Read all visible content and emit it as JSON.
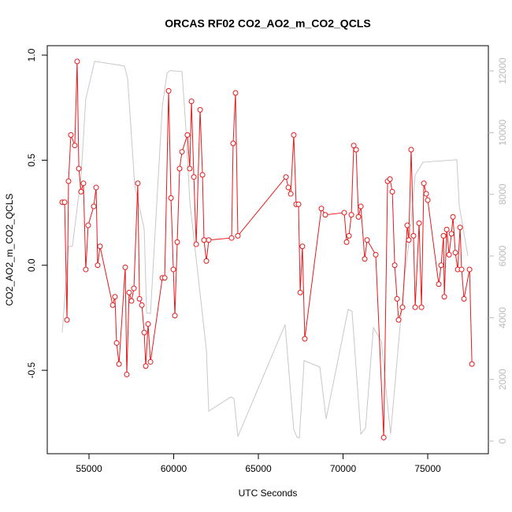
{
  "chart_data": {
    "type": "line",
    "title": "ORCAS RF02 CO2_AO2_m_CO2_QCLS",
    "xlabel": "UTC Seconds",
    "ylabel": "CO2_AO2_m_CO2_QCLS",
    "xlim": [
      52535,
      78580
    ],
    "ylim": [
      -0.897,
      1.045
    ],
    "y2lim": [
      -408,
      12817
    ],
    "xticks": [
      55000,
      60000,
      65000,
      70000,
      75000
    ],
    "yticks": [
      {
        "value": -0.5,
        "label": "-0.5"
      },
      {
        "value": 0,
        "label": "0.0"
      },
      {
        "value": 0.5,
        "label": "0.5"
      },
      {
        "value": 1,
        "label": "1.0"
      }
    ],
    "y2ticks": [
      0,
      2000,
      4000,
      6000,
      8000,
      10000,
      12000
    ],
    "series": [
      {
        "color": "#e41a1c",
        "markers": true,
        "x": [
          53419,
          53560,
          53700,
          53790,
          53930,
          54160,
          54300,
          54400,
          54530,
          54670,
          54810,
          54950,
          55280,
          55420,
          55510,
          55650,
          56400,
          56530,
          56630,
          56770,
          57140,
          57230,
          57370,
          57510,
          57650,
          57880,
          57980,
          58120,
          58260,
          58350,
          58490,
          58630,
          59330,
          59470,
          59700,
          59840,
          59980,
          60070,
          60210,
          60350,
          60490,
          60810,
          60950,
          61050,
          61190,
          61330,
          61560,
          61700,
          61790,
          61930,
          62070,
          63420,
          63510,
          63650,
          63790,
          66630,
          66770,
          66910,
          67090,
          67230,
          67370,
          67470,
          67600,
          67740,
          68720,
          68950,
          70070,
          70210,
          70350,
          70490,
          70630,
          70770,
          70910,
          71050,
          71280,
          71420,
          71930,
          72400,
          72630,
          72770,
          72910,
          73050,
          73190,
          73280,
          73510,
          73790,
          73880,
          74020,
          74160,
          74260,
          74490,
          74630,
          74770,
          74910,
          75000,
          75650,
          75790,
          75930,
          75980,
          76120,
          76260,
          76400,
          76490,
          76630,
          76770,
          76910,
          77000,
          77140,
          77470,
          77610
        ],
        "values": [
          0.3,
          0.3,
          -0.26,
          0.4,
          0.62,
          0.57,
          0.97,
          0.46,
          0.35,
          0.39,
          -0.02,
          0.19,
          0.28,
          0.37,
          0.0,
          0.09,
          -0.19,
          -0.15,
          -0.37,
          -0.47,
          -0.01,
          -0.52,
          -0.13,
          -0.17,
          -0.11,
          0.39,
          -0.16,
          -0.19,
          -0.32,
          -0.48,
          -0.28,
          -0.46,
          -0.06,
          -0.06,
          0.83,
          0.32,
          -0.02,
          -0.24,
          0.11,
          0.46,
          0.54,
          0.62,
          0.46,
          0.78,
          0.42,
          0.1,
          0.74,
          0.43,
          0.12,
          0.02,
          0.12,
          0.13,
          0.58,
          0.82,
          0.14,
          0.42,
          0.37,
          0.34,
          0.62,
          0.29,
          0.29,
          -0.13,
          0.09,
          -0.35,
          0.27,
          0.24,
          0.25,
          0.11,
          0.14,
          0.24,
          0.57,
          0.55,
          0.23,
          0.28,
          0.03,
          0.12,
          0.05,
          -0.82,
          0.4,
          0.41,
          0.35,
          0.0,
          -0.16,
          -0.26,
          -0.2,
          0.19,
          0.12,
          0.55,
          0.14,
          -0.2,
          0.2,
          -0.2,
          0.39,
          0.34,
          0.31,
          -0.09,
          0.0,
          0.14,
          -0.15,
          0.17,
          0.05,
          0.15,
          0.23,
          0.06,
          -0.02,
          0.18,
          -0.02,
          -0.16,
          -0.02,
          -0.47
        ]
      },
      {
        "color": "#c8c8c8",
        "axis": "y2",
        "markers": false,
        "x": [
          53420,
          53790,
          54020,
          54530,
          54810,
          55330,
          57090,
          57280,
          57700,
          58260,
          58400,
          58630,
          59330,
          59610,
          59790,
          60490,
          60720,
          60950,
          61930,
          62070,
          63370,
          63560,
          63790,
          66580,
          66910,
          67090,
          67280,
          67420,
          67700,
          68630,
          69000,
          70300,
          70530,
          71050,
          71330,
          71790,
          72260,
          72670,
          72810,
          73280,
          73650,
          73970,
          74260,
          74720,
          76720,
          76860,
          77370
        ],
        "values": [
          3525,
          6310,
          6310,
          8580,
          11090,
          12310,
          12160,
          11750,
          8280,
          6870,
          4160,
          4140,
          10860,
          11930,
          12010,
          11980,
          10140,
          7770,
          2960,
          970,
          1430,
          1380,
          150,
          3780,
          1530,
          380,
          130,
          100,
          2610,
          2400,
          720,
          4270,
          4210,
          230,
          430,
          3680,
          3240,
          950,
          230,
          3190,
          5410,
          6770,
          8630,
          9040,
          9120,
          7640,
          6000
        ]
      }
    ]
  }
}
